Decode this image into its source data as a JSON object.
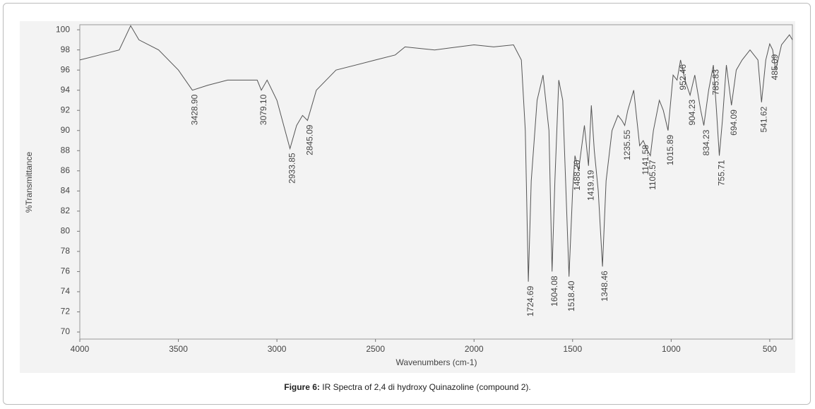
{
  "chart_data": {
    "type": "line",
    "x_label": "Wavenumbers (cm-1)",
    "y_label": "%Transmittance",
    "caption_label": "Figure 6:",
    "caption_text": "IR Spectra of 2,4 di hydroxy Quinazoline (compound 2).",
    "xlim": [
      4000,
      385
    ],
    "ylim": [
      69.3,
      100.5
    ],
    "xticks": [
      4000,
      3500,
      3000,
      2500,
      2000,
      1500,
      1000,
      500
    ],
    "yticks": [
      70,
      72,
      74,
      76,
      78,
      80,
      82,
      84,
      86,
      88,
      90,
      92,
      94,
      96,
      98,
      100
    ],
    "series": [
      {
        "color": "#555555",
        "x": [
          4000,
          3900,
          3800,
          3742,
          3700,
          3600,
          3500,
          3428.9,
          3350,
          3250,
          3100,
          3079.1,
          3050,
          3000,
          2933.85,
          2900,
          2870,
          2845.09,
          2800,
          2700,
          2500,
          2400,
          2350,
          2200,
          2000,
          1900,
          1800,
          1760,
          1740,
          1724.69,
          1710,
          1680,
          1650,
          1620,
          1604.08,
          1590,
          1570,
          1550,
          1518.4,
          1500,
          1488.2,
          1470,
          1440,
          1419.19,
          1405,
          1390,
          1370,
          1348.46,
          1330,
          1300,
          1270,
          1250,
          1235.55,
          1220,
          1190,
          1160,
          1141.58,
          1120,
          1105.57,
          1090,
          1060,
          1040,
          1015.89,
          990,
          970,
          952.46,
          930,
          904.23,
          880,
          850,
          834.23,
          810,
          785.83,
          770,
          755.71,
          740,
          720,
          694.09,
          670,
          640,
          600,
          560,
          541.62,
          520,
          500,
          485.09,
          470,
          440,
          400,
          385
        ],
        "values": [
          97,
          97.5,
          98,
          100.4,
          99,
          98,
          96,
          94,
          94.5,
          95,
          95,
          94,
          95,
          93,
          88.2,
          90.5,
          91.5,
          91,
          94,
          96,
          97,
          97.5,
          98.3,
          98,
          98.5,
          98.3,
          98.5,
          97,
          90,
          75,
          85,
          93,
          95.5,
          90,
          76,
          85,
          95,
          93,
          75.5,
          84,
          87.5,
          86,
          90.5,
          86.5,
          92.5,
          88,
          84,
          76.5,
          85,
          90,
          91.5,
          91,
          90.5,
          92,
          94,
          88.5,
          89,
          88,
          87.5,
          90,
          93,
          92,
          90,
          95.5,
          95,
          97,
          95,
          93.5,
          95.5,
          92,
          90.5,
          94,
          96.5,
          92,
          87.5,
          91,
          96.5,
          92.5,
          96,
          97,
          98,
          97,
          92.8,
          97,
          98.6,
          98,
          96,
          98.5,
          99.5,
          99
        ]
      }
    ],
    "annotations": [
      {
        "x": 3428.9,
        "y": 94,
        "label": "3428.90"
      },
      {
        "x": 3079.1,
        "y": 94,
        "label": "3079.10"
      },
      {
        "x": 2933.85,
        "y": 88.2,
        "label": "2933.85"
      },
      {
        "x": 2845.09,
        "y": 91,
        "label": "2845.09"
      },
      {
        "x": 1724.69,
        "y": 75,
        "label": "1724.69"
      },
      {
        "x": 1604.08,
        "y": 76,
        "label": "1604.08"
      },
      {
        "x": 1518.4,
        "y": 75.5,
        "label": "1518.40"
      },
      {
        "x": 1488.2,
        "y": 87.5,
        "label": "1488.20"
      },
      {
        "x": 1419.19,
        "y": 86.5,
        "label": "1419.19"
      },
      {
        "x": 1348.46,
        "y": 76.5,
        "label": "1348.46"
      },
      {
        "x": 1235.55,
        "y": 90.5,
        "label": "1235.55"
      },
      {
        "x": 1141.58,
        "y": 89,
        "label": "1141.58"
      },
      {
        "x": 1105.57,
        "y": 87.5,
        "label": "1105.57"
      },
      {
        "x": 1015.89,
        "y": 90,
        "label": "1015.89"
      },
      {
        "x": 952.46,
        "y": 97,
        "label": "952.46"
      },
      {
        "x": 904.23,
        "y": 93.5,
        "label": "904.23"
      },
      {
        "x": 834.23,
        "y": 90.5,
        "label": "834.23"
      },
      {
        "x": 785.83,
        "y": 96.5,
        "label": "785.83"
      },
      {
        "x": 755.71,
        "y": 87.5,
        "label": "755.71"
      },
      {
        "x": 694.09,
        "y": 92.5,
        "label": "694.09"
      },
      {
        "x": 541.62,
        "y": 92.8,
        "label": "541.62"
      },
      {
        "x": 485.09,
        "y": 98,
        "label": "485.09"
      }
    ]
  }
}
